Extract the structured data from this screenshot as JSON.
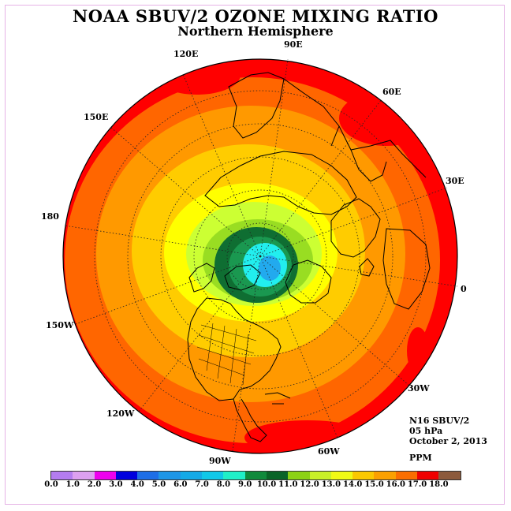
{
  "title": "NOAA SBUV/2 OZONE MIXING RATIO",
  "subtitle": "Northern Hemisphere",
  "longitude_labels": {
    "e90": "90E",
    "e60": "60E",
    "e30": "30E",
    "zero": "0",
    "w30": "30W",
    "w60": "60W",
    "w90": "90W",
    "w120": "120W",
    "w150": "150W",
    "d180": "180",
    "e150": "150E",
    "e120": "120E"
  },
  "info": {
    "instrument": "N16 SBUV/2",
    "pressure": "05 hPa",
    "date": "October 2, 2013",
    "units": "PPM"
  },
  "colorbar": {
    "ticks": [
      "0.0",
      "1.0",
      "2.0",
      "3.0",
      "4.0",
      "5.0",
      "6.0",
      "7.0",
      "8.0",
      "9.0",
      "10.0",
      "11.0",
      "12.0",
      "13.0",
      "14.0",
      "15.0",
      "16.0",
      "17.0",
      "18.0"
    ],
    "colors": [
      "#b47cf0",
      "#dca0f0",
      "#ee00ee",
      "#0000dd",
      "#1e6ee6",
      "#1e96e6",
      "#14aae6",
      "#10c8e8",
      "#20f0c8",
      "#108a3c",
      "#0a6428",
      "#8cd214",
      "#c8f028",
      "#f0fa14",
      "#fac800",
      "#faa000",
      "#fa6e00",
      "#f00000",
      "#8c5a3c"
    ]
  },
  "map_colors": {
    "red": "#ff0000",
    "orange_red": "#ff6600",
    "orange": "#ff9900",
    "gold": "#ffcc00",
    "yellow": "#ffff00",
    "yellow_green": "#ccff33",
    "light_green": "#99dd22",
    "dark_green": "#0f6e32",
    "green": "#1a9850",
    "cyan": "#22eeee",
    "sky": "#22aaee"
  }
}
